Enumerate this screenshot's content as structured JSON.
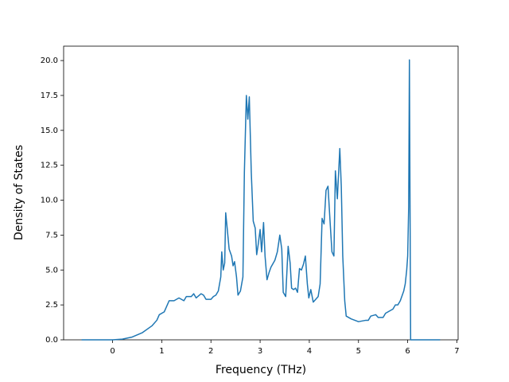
{
  "chart_data": {
    "type": "line",
    "xlabel": "Frequency (THz)",
    "ylabel": "Density of States",
    "color": "#1f77b4",
    "x": [
      -0.63,
      0,
      0.2,
      0.4,
      0.6,
      0.8,
      0.9,
      0.95,
      1.05,
      1.1,
      1.15,
      1.25,
      1.35,
      1.45,
      1.5,
      1.6,
      1.65,
      1.7,
      1.8,
      1.85,
      1.9,
      2.0,
      2.05,
      2.1,
      2.15,
      2.2,
      2.22,
      2.25,
      2.28,
      2.3,
      2.33,
      2.37,
      2.42,
      2.45,
      2.48,
      2.52,
      2.55,
      2.6,
      2.65,
      2.68,
      2.72,
      2.75,
      2.78,
      2.82,
      2.86,
      2.9,
      2.93,
      2.96,
      3.0,
      3.03,
      3.07,
      3.1,
      3.14,
      3.18,
      3.22,
      3.3,
      3.35,
      3.4,
      3.44,
      3.47,
      3.52,
      3.57,
      3.61,
      3.64,
      3.68,
      3.72,
      3.76,
      3.8,
      3.84,
      3.88,
      3.92,
      3.96,
      3.99,
      4.03,
      4.08,
      4.13,
      4.18,
      4.22,
      4.26,
      4.3,
      4.34,
      4.38,
      4.42,
      4.46,
      4.5,
      4.53,
      4.57,
      4.62,
      4.65,
      4.68,
      4.72,
      4.75,
      4.85,
      5.0,
      5.15,
      5.2,
      5.25,
      5.35,
      5.4,
      5.5,
      5.55,
      5.65,
      5.7,
      5.75,
      5.8,
      5.85,
      5.92,
      5.95,
      5.98,
      6.0,
      6.02,
      6.035,
      6.06,
      6.66
    ],
    "values": [
      0,
      0,
      0.05,
      0.2,
      0.5,
      1.0,
      1.4,
      1.8,
      2.0,
      2.4,
      2.8,
      2.8,
      3.0,
      2.8,
      3.1,
      3.1,
      3.3,
      3.0,
      3.3,
      3.2,
      2.9,
      2.9,
      3.1,
      3.2,
      3.5,
      4.5,
      6.3,
      5.0,
      5.5,
      9.1,
      8.0,
      6.5,
      6.0,
      5.3,
      5.6,
      4.5,
      3.2,
      3.5,
      4.5,
      12.0,
      17.5,
      15.8,
      17.4,
      12.0,
      8.5,
      8.0,
      6.1,
      6.8,
      7.9,
      6.3,
      8.4,
      6.0,
      4.3,
      4.8,
      5.2,
      5.7,
      6.3,
      7.5,
      6.5,
      3.4,
      3.1,
      6.7,
      5.5,
      3.7,
      3.6,
      3.7,
      3.4,
      5.1,
      5.0,
      5.4,
      6.0,
      4.0,
      3.0,
      3.6,
      2.7,
      2.9,
      3.1,
      4.0,
      8.7,
      8.3,
      10.7,
      11.0,
      8.6,
      6.3,
      6.0,
      12.1,
      10.1,
      13.7,
      11.0,
      6.0,
      2.8,
      1.7,
      1.5,
      1.3,
      1.4,
      1.4,
      1.7,
      1.8,
      1.6,
      1.6,
      1.9,
      2.1,
      2.2,
      2.5,
      2.5,
      2.8,
      3.5,
      4.0,
      5.0,
      6.0,
      9.5,
      20.05,
      0,
      0
    ],
    "xlim": [
      -0.995,
      7.025
    ],
    "ylim": [
      0,
      21.03
    ],
    "xticks": [
      0,
      1,
      2,
      3,
      4,
      5,
      6,
      7
    ],
    "yticks": [
      {
        "value": 0,
        "label": "0.0"
      },
      2.5,
      {
        "value": 5,
        "label": "5.0"
      },
      7.5,
      {
        "value": 10,
        "label": "10.0"
      },
      12.5,
      {
        "value": 15,
        "label": "15.0"
      },
      17.5,
      {
        "value": 20,
        "label": "20.0"
      }
    ]
  }
}
